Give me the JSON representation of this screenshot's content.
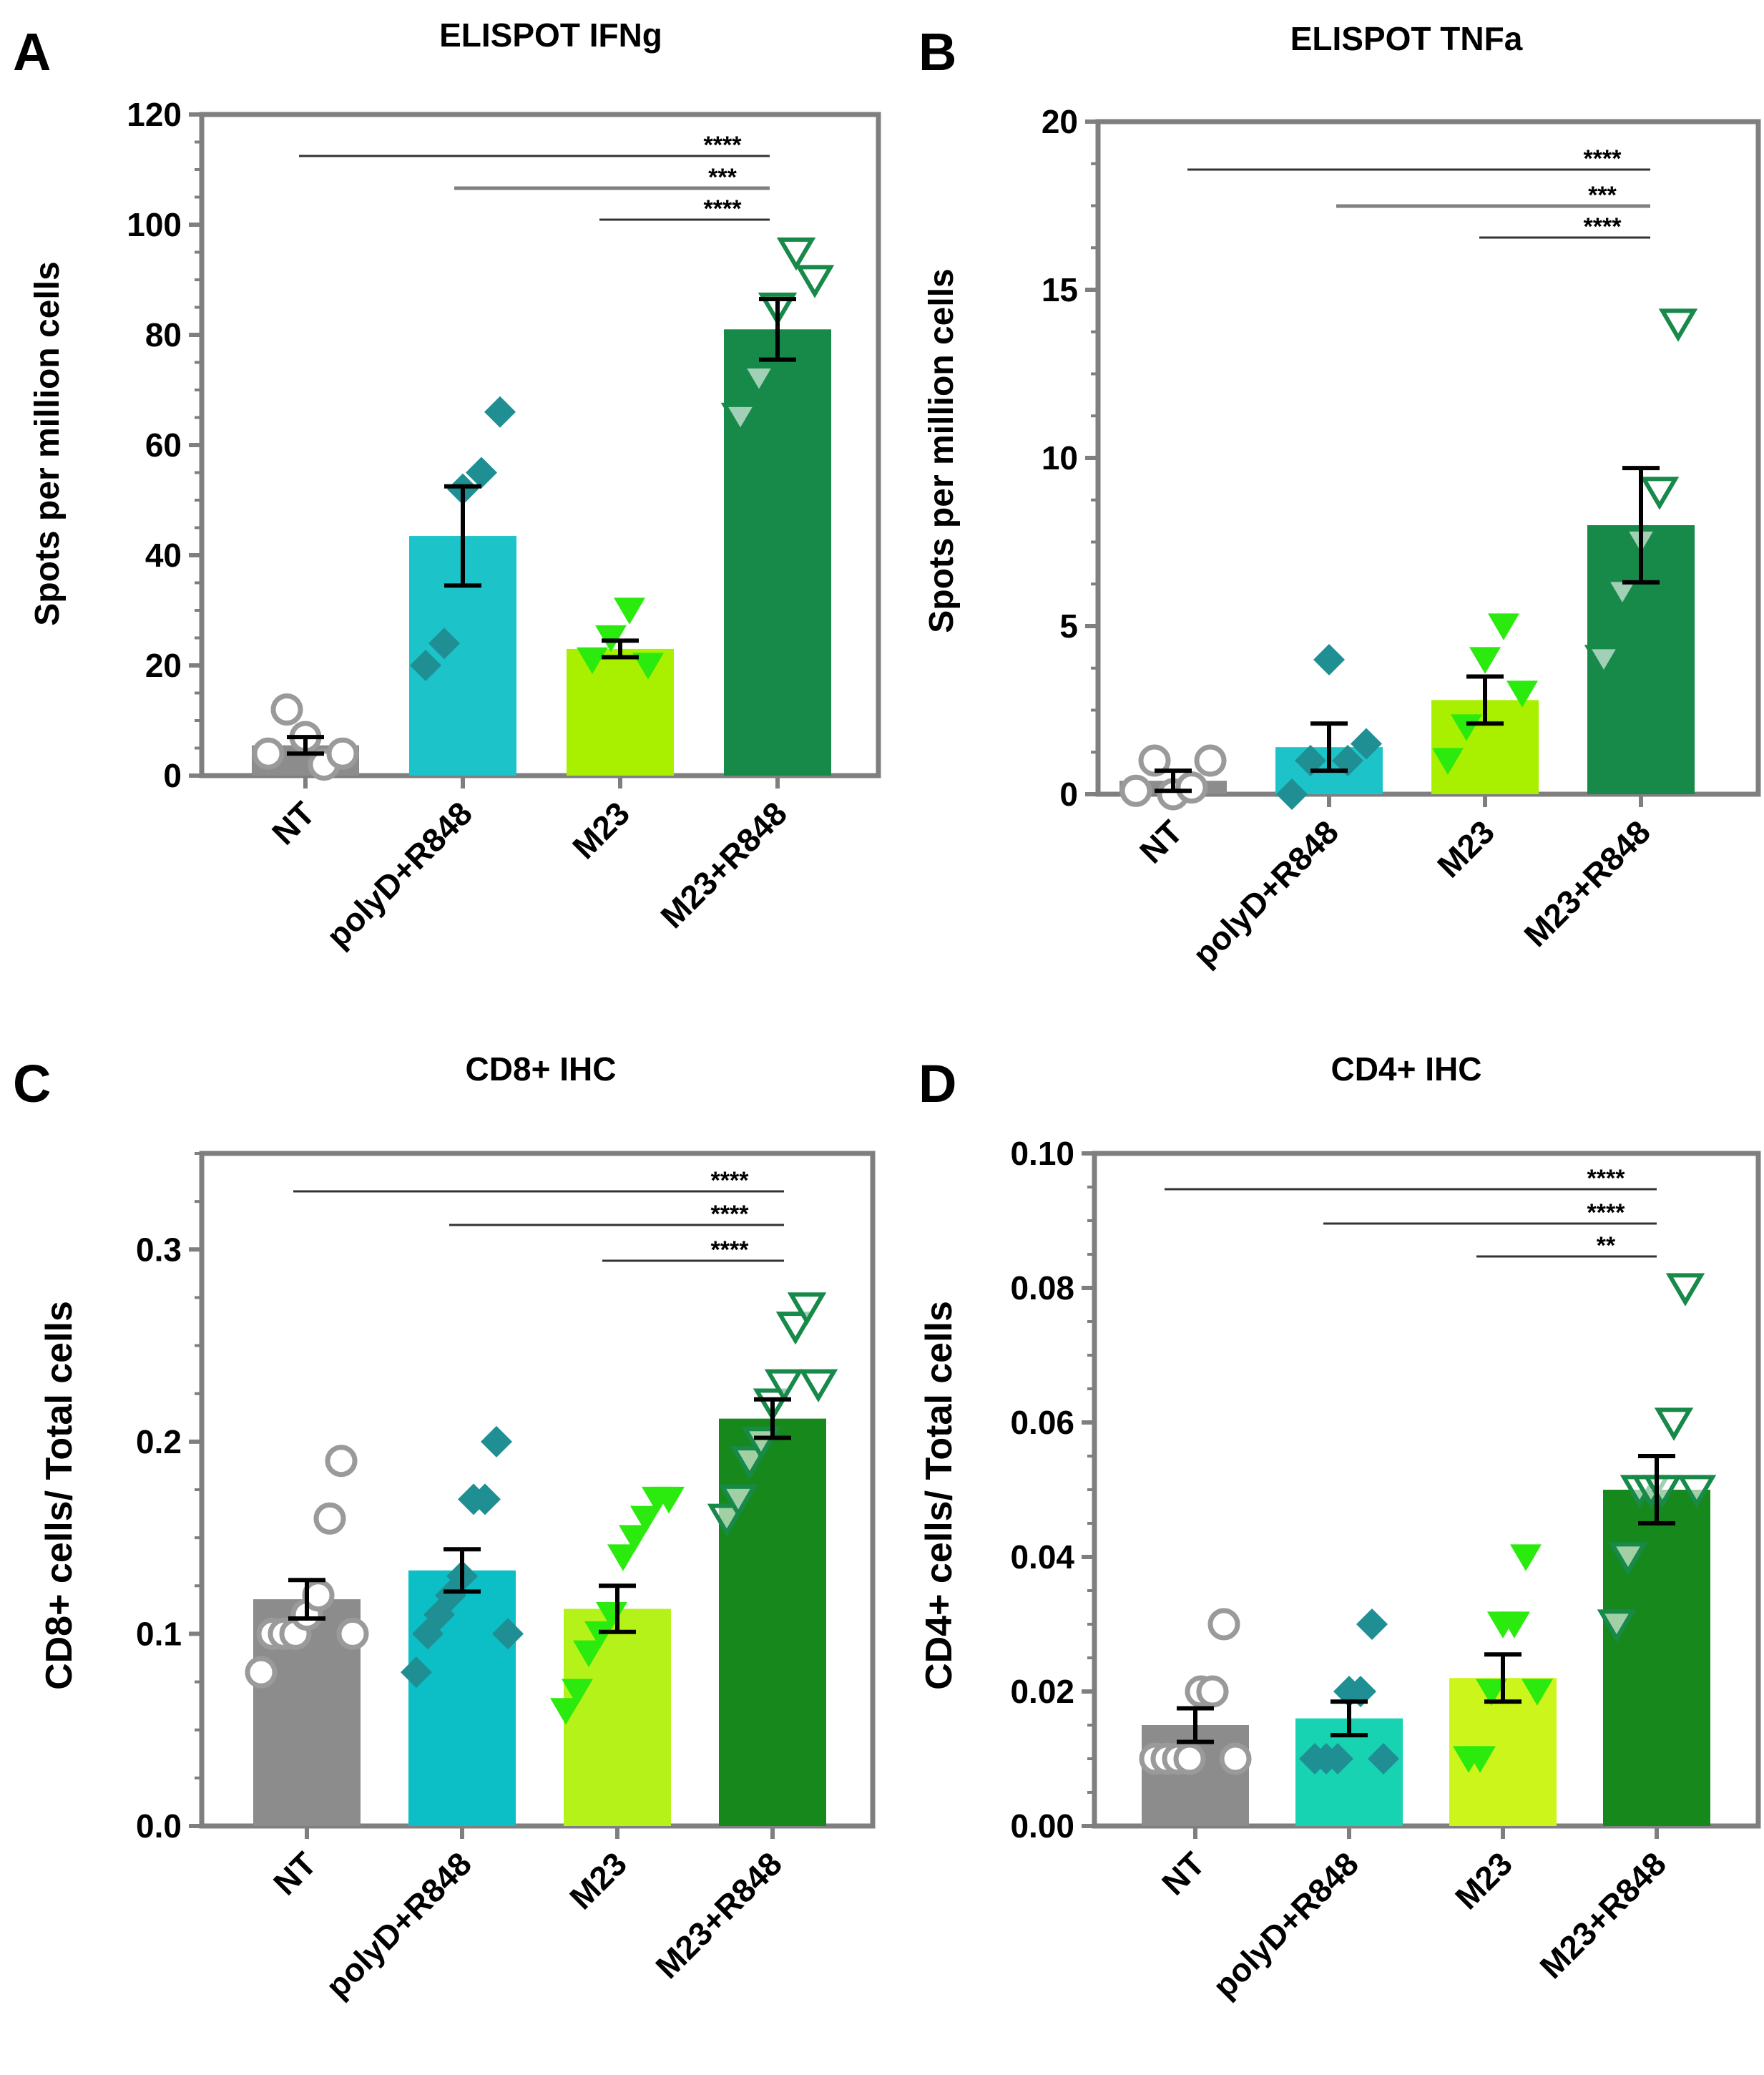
{
  "chart_data": [
    {
      "type": "bar",
      "panel_letter": "A",
      "title": "ELISPOT IFNg",
      "xlabel": "",
      "ylabel": "Spots per million cells",
      "ylim": [
        0,
        120
      ],
      "yticks": [
        0,
        20,
        40,
        60,
        80,
        100,
        120
      ],
      "ytick_labels": [
        "0",
        "20",
        "40",
        "60",
        "80",
        "100",
        "120"
      ],
      "categories": [
        "NT",
        "polyD+R848",
        "M23",
        "M23+R848"
      ],
      "values": [
        5.5,
        43.5,
        23,
        81
      ],
      "errors": [
        1.5,
        9,
        1.5,
        5.5
      ],
      "bar_colors": [
        "#8c8c8c",
        "#1cc3c9",
        "#a8f000",
        "#178a4a"
      ],
      "points": [
        [
          4,
          12,
          7,
          2,
          4
        ],
        [
          20,
          24,
          52,
          55,
          66
        ],
        [
          21,
          25,
          30,
          20
        ],
        [
          65,
          72,
          85,
          95,
          90
        ]
      ],
      "significance": [
        {
          "from": 0,
          "to": 3,
          "label": "****"
        },
        {
          "from": 1,
          "to": 3,
          "label": "***"
        },
        {
          "from": 2,
          "to": 3,
          "label": "****"
        }
      ]
    },
    {
      "type": "bar",
      "panel_letter": "B",
      "title": "ELISPOT TNFa",
      "xlabel": "",
      "ylabel": "Spots per million cells",
      "ylim": [
        0,
        20
      ],
      "yticks": [
        0,
        5,
        10,
        15,
        20
      ],
      "ytick_labels": [
        "0",
        "5",
        "10",
        "15",
        "20"
      ],
      "categories": [
        "NT",
        "polyD+R848",
        "M23",
        "M23+R848"
      ],
      "values": [
        0.4,
        1.4,
        2.8,
        8
      ],
      "errors": [
        0.3,
        0.7,
        0.7,
        1.7
      ],
      "bar_colors": [
        "#8c8c8c",
        "#1cc3c9",
        "#a8f000",
        "#178a4a"
      ],
      "points": [
        [
          0.1,
          1,
          0,
          0.2,
          1
        ],
        [
          0,
          1,
          4,
          1,
          1.5
        ],
        [
          1,
          2,
          4,
          5,
          3
        ],
        [
          4,
          6,
          7.5,
          9,
          14
        ]
      ],
      "significance": [
        {
          "from": 0,
          "to": 3,
          "label": "****"
        },
        {
          "from": 1,
          "to": 3,
          "label": "***"
        },
        {
          "from": 2,
          "to": 3,
          "label": "****"
        }
      ]
    },
    {
      "type": "bar",
      "panel_letter": "C",
      "title": "CD8+ IHC",
      "xlabel": "",
      "ylabel": "CD8+ cells/ Total cells",
      "ylim": [
        0,
        0.35
      ],
      "yticks": [
        0,
        0.1,
        0.2,
        0.3
      ],
      "ytick_labels": [
        "0.0",
        "0.1",
        "0.2",
        "0.3"
      ],
      "categories": [
        "NT",
        "polyD+R848",
        "M23",
        "M23+R848"
      ],
      "values": [
        0.118,
        0.133,
        0.113,
        0.212
      ],
      "errors": [
        0.01,
        0.011,
        0.012,
        0.01
      ],
      "bar_colors": [
        "#8c8c8c",
        "#0cbfc6",
        "#b5f21a",
        "#17891c"
      ],
      "points": [
        [
          0.08,
          0.1,
          0.1,
          0.1,
          0.11,
          0.12,
          0.16,
          0.19,
          0.1
        ],
        [
          0.08,
          0.1,
          0.11,
          0.12,
          0.13,
          0.17,
          0.17,
          0.2,
          0.1
        ],
        [
          0.06,
          0.07,
          0.09,
          0.1,
          0.11,
          0.14,
          0.15,
          0.16,
          0.17,
          0.17
        ],
        [
          0.16,
          0.17,
          0.19,
          0.2,
          0.22,
          0.23,
          0.26,
          0.27,
          0.23
        ]
      ],
      "significance": [
        {
          "from": 0,
          "to": 3,
          "label": "****"
        },
        {
          "from": 1,
          "to": 3,
          "label": "****"
        },
        {
          "from": 2,
          "to": 3,
          "label": "****"
        }
      ]
    },
    {
      "type": "bar",
      "panel_letter": "D",
      "title": "CD4+ IHC",
      "xlabel": "",
      "ylabel": "CD4+ cells/ Total cells",
      "ylim": [
        0,
        0.1
      ],
      "yticks": [
        0,
        0.02,
        0.04,
        0.06,
        0.08,
        0.1
      ],
      "ytick_labels": [
        "0.00",
        "0.02",
        "0.04",
        "0.06",
        "0.08",
        "0.10"
      ],
      "categories": [
        "NT",
        "polyD+R848",
        "M23",
        "M23+R848"
      ],
      "values": [
        0.015,
        0.016,
        0.022,
        0.05
      ],
      "errors": [
        0.0025,
        0.0025,
        0.0035,
        0.005
      ],
      "bar_colors": [
        "#8c8c8c",
        "#17d3b1",
        "#ccf51c",
        "#17891c"
      ],
      "points": [
        [
          0.01,
          0.01,
          0.01,
          0.01,
          0.02,
          0.02,
          0.03,
          0.01
        ],
        [
          0.01,
          0.01,
          0.01,
          0.02,
          0.02,
          0.03,
          0.01
        ],
        [
          0.01,
          0.01,
          0.02,
          0.03,
          0.03,
          0.04,
          0.02
        ],
        [
          0.03,
          0.04,
          0.05,
          0.05,
          0.05,
          0.06,
          0.08,
          0.05
        ]
      ],
      "significance": [
        {
          "from": 0,
          "to": 3,
          "label": "****"
        },
        {
          "from": 1,
          "to": 3,
          "label": "****"
        },
        {
          "from": 2,
          "to": 3,
          "label": "**"
        }
      ]
    }
  ],
  "marker_styles": [
    "circle",
    "diamond",
    "triangle",
    "triangle-open"
  ],
  "marker_colors": {
    "circle": "#9a9a9a",
    "diamond": "#1f8f93",
    "triangle": "#2bea0e",
    "triangle_open": "#178a4a"
  }
}
